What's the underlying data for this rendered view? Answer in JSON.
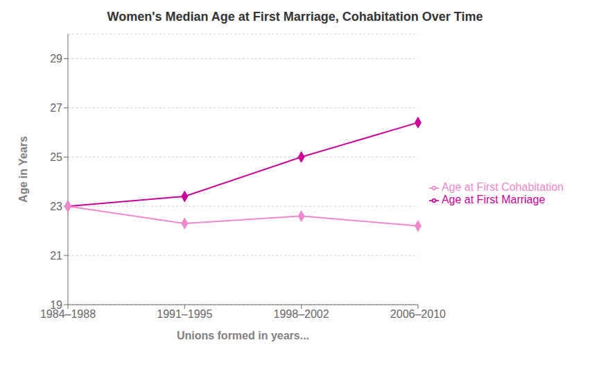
{
  "chart_data": {
    "type": "line",
    "title": "Women's Median Age at First Marriage, Cohabitation Over Time",
    "xlabel": "Unions formed in years...",
    "ylabel": "Age in Years",
    "categories": [
      "1984–1988",
      "1991–1995",
      "1998–2002",
      "2006–2010"
    ],
    "series": [
      {
        "name": "Age at First Marriage",
        "color": "#cc0099",
        "values": [
          23.0,
          23.4,
          25.0,
          26.4
        ],
        "marker": "diamond"
      },
      {
        "name": "Age at First Cohabitation",
        "color": "#ee88cc",
        "values": [
          23.0,
          22.3,
          22.6,
          22.2
        ],
        "marker": "diamond"
      }
    ],
    "ylim": [
      19,
      30
    ],
    "yticks": [
      19,
      21,
      23,
      25,
      27,
      29
    ],
    "grid": true,
    "legend": "right"
  }
}
